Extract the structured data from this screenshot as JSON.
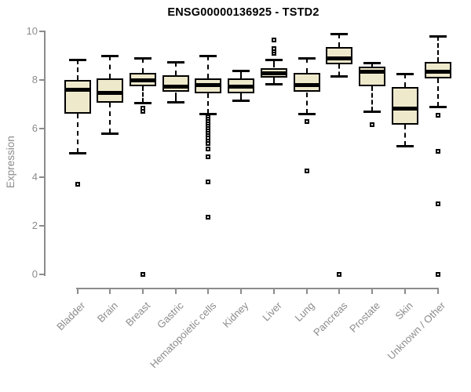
{
  "chart_data": {
    "type": "boxplot",
    "title": "ENSG00000136925 - TSTD2",
    "ylabel": "Expression",
    "xlabel": "",
    "ylim": [
      0,
      10
    ],
    "yticks": [
      0,
      2,
      4,
      6,
      8,
      10
    ],
    "grid": false,
    "legend": "none",
    "categories": [
      "Bladder",
      "Brain",
      "Breast",
      "Gastric",
      "Hematopoietic cells",
      "Kidney",
      "Liver",
      "Lung",
      "Pancreas",
      "Prostate",
      "Skin",
      "Unknown / Other"
    ],
    "series": [
      {
        "name": "Bladder",
        "whisker_low": 5.0,
        "q1": 6.6,
        "median": 7.6,
        "q3": 8.0,
        "whisker_high": 8.85,
        "outliers": [
          3.7
        ]
      },
      {
        "name": "Brain",
        "whisker_low": 5.8,
        "q1": 7.05,
        "median": 7.5,
        "q3": 8.05,
        "whisker_high": 9.0,
        "outliers": []
      },
      {
        "name": "Breast",
        "whisker_low": 7.05,
        "q1": 7.75,
        "median": 8.0,
        "q3": 8.3,
        "whisker_high": 8.9,
        "outliers": [
          6.85,
          6.7,
          0
        ]
      },
      {
        "name": "Gastric",
        "whisker_low": 7.1,
        "q1": 7.5,
        "median": 7.75,
        "q3": 8.2,
        "whisker_high": 8.75,
        "outliers": []
      },
      {
        "name": "Hematopoietic cells",
        "whisker_low": 6.6,
        "q1": 7.45,
        "median": 7.8,
        "q3": 8.05,
        "whisker_high": 9.0,
        "outliers": [
          6.5,
          6.4,
          6.3,
          6.2,
          6.1,
          6.0,
          5.9,
          5.8,
          5.7,
          5.6,
          5.5,
          5.4,
          5.15,
          4.85,
          3.8,
          2.35
        ]
      },
      {
        "name": "Kidney",
        "whisker_low": 7.15,
        "q1": 7.45,
        "median": 7.75,
        "q3": 8.05,
        "whisker_high": 8.4,
        "outliers": []
      },
      {
        "name": "Liver",
        "whisker_low": 7.85,
        "q1": 8.1,
        "median": 8.3,
        "q3": 8.5,
        "whisker_high": 8.85,
        "outliers": [
          9.1,
          9.2,
          9.3,
          9.65
        ]
      },
      {
        "name": "Lung",
        "whisker_low": 6.6,
        "q1": 7.5,
        "median": 7.8,
        "q3": 8.3,
        "whisker_high": 8.9,
        "outliers": [
          6.3,
          4.25
        ]
      },
      {
        "name": "Pancreas",
        "whisker_low": 8.15,
        "q1": 8.65,
        "median": 8.9,
        "q3": 9.35,
        "whisker_high": 9.9,
        "outliers": [
          0
        ]
      },
      {
        "name": "Prostate",
        "whisker_low": 6.7,
        "q1": 7.75,
        "median": 8.35,
        "q3": 8.55,
        "whisker_high": 8.7,
        "outliers": [
          6.15
        ]
      },
      {
        "name": "Skin",
        "whisker_low": 5.3,
        "q1": 6.15,
        "median": 6.85,
        "q3": 7.7,
        "whisker_high": 8.25,
        "outliers": []
      },
      {
        "name": "Unknown / Other",
        "whisker_low": 6.9,
        "q1": 8.05,
        "median": 8.35,
        "q3": 8.75,
        "whisker_high": 9.8,
        "outliers": [
          6.55,
          5.05,
          2.9,
          0
        ]
      }
    ],
    "colors": {
      "box_fill": "#efe9cc",
      "box_border": "#000000",
      "median": "#000000",
      "whisker": "#000000",
      "outlier": "#000000",
      "axis": "#8c8c8c",
      "tick_label": "#8c8c8c",
      "title": "#000000"
    }
  }
}
